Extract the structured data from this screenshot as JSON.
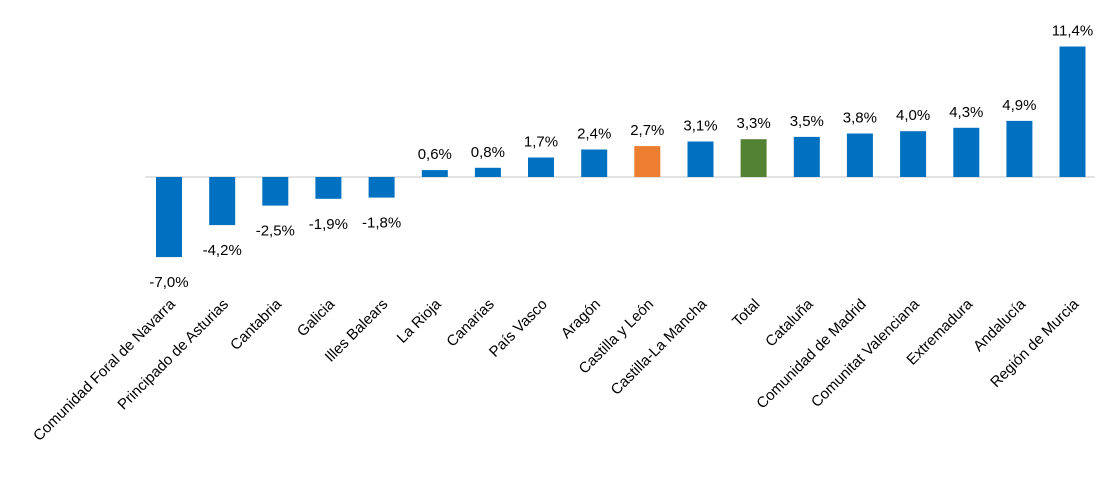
{
  "chart_data": {
    "type": "bar",
    "title": "",
    "xlabel": "",
    "ylabel": "",
    "ylim": [
      -7.0,
      11.4
    ],
    "grid": false,
    "legend": "none",
    "categories": [
      "Comunidad Foral de Navarra",
      "Principado de Asturias",
      "Cantabria",
      "Galicia",
      "Illes Balears",
      "La Rioja",
      "Canarias",
      "País Vasco",
      "Aragón",
      "Castilla y León",
      "Castilla-La Mancha",
      "Total",
      "Cataluña",
      "Comunidad de Madrid",
      "Comunitat Valenciana",
      "Extremadura",
      "Andalucía",
      "Región de Murcia"
    ],
    "values": [
      -7.0,
      -4.2,
      -2.5,
      -1.9,
      -1.8,
      0.6,
      0.8,
      1.7,
      2.4,
      2.7,
      3.1,
      3.3,
      3.5,
      3.8,
      4.0,
      4.3,
      4.9,
      11.4
    ],
    "value_labels": [
      "-7,0%",
      "-4,2%",
      "-2,5%",
      "-1,9%",
      "-1,8%",
      "0,6%",
      "0,8%",
      "1,7%",
      "2,4%",
      "2,7%",
      "3,1%",
      "3,3%",
      "3,5%",
      "3,8%",
      "4,0%",
      "4,3%",
      "4,9%",
      "11,4%"
    ],
    "colors": {
      "default": "#0070C0",
      "Castilla y León": "#ED7D31",
      "Total": "#548235",
      "axis": "#D9D9D9"
    }
  }
}
